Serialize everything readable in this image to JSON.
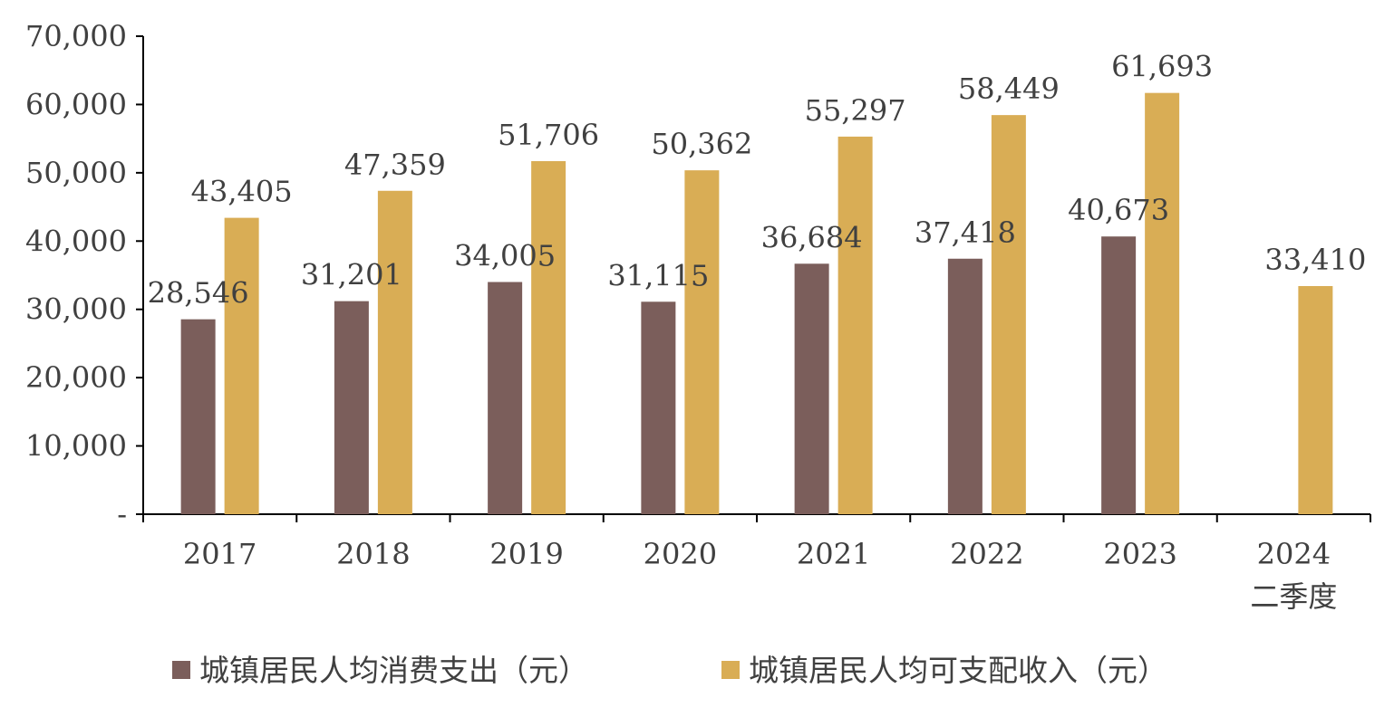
{
  "chart_data": {
    "type": "bar",
    "categories": [
      "2017",
      "2018",
      "2019",
      "2020",
      "2021",
      "2022",
      "2023",
      "2024\n二季度"
    ],
    "series": [
      {
        "name": "城镇居民人均消费支出（元）",
        "color": "#7b5e5b",
        "values": [
          28546,
          31201,
          34005,
          31115,
          36684,
          37418,
          40673,
          null
        ],
        "labels": [
          "28,546",
          "31,201",
          "34,005",
          "31,115",
          "36,684",
          "37,418",
          "40,673",
          ""
        ]
      },
      {
        "name": "城镇居民人均可支配收入（元）",
        "color": "#d9ad55",
        "values": [
          43405,
          47359,
          51706,
          50362,
          55297,
          58449,
          61693,
          33410
        ],
        "labels": [
          "43,405",
          "47,359",
          "51,706",
          "50,362",
          "55,297",
          "58,449",
          "61,693",
          "33,410"
        ]
      }
    ],
    "ylim": [
      0,
      70000
    ],
    "yticks": [
      0,
      10000,
      20000,
      30000,
      40000,
      50000,
      60000,
      70000
    ],
    "ytick_labels": [
      "-",
      "10,000",
      "20,000",
      "30,000",
      "40,000",
      "50,000",
      "60,000",
      "70,000"
    ],
    "legend_position": "bottom",
    "grid": false
  }
}
